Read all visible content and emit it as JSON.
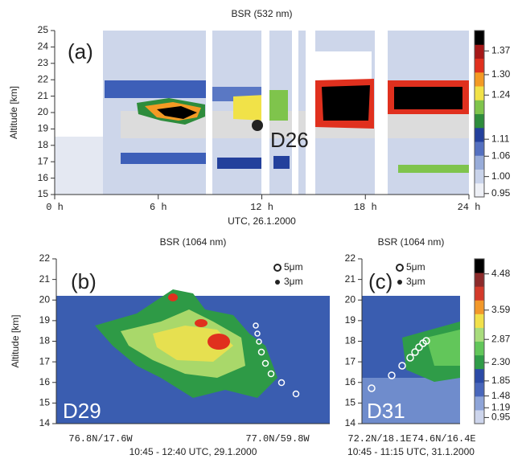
{
  "chart_data": [
    {
      "type": "heatmap",
      "title": "BSR (532 nm)",
      "panel_label": "(a)",
      "annotation": "D26",
      "ylabel": "Altitude [km]",
      "xlabel": "UTC, 26.1.2000",
      "xlim": [
        0,
        24
      ],
      "xticks": [
        {
          "value": 0,
          "label": "0 h"
        },
        {
          "value": 6,
          "label": "6 h"
        },
        {
          "value": 12,
          "label": "12 h"
        },
        {
          "value": 18,
          "label": "18 h"
        },
        {
          "value": 24,
          "label": "24 h"
        }
      ],
      "ylim": [
        15,
        25
      ],
      "yticks": [
        15,
        16,
        17,
        18,
        19,
        20,
        21,
        22,
        23,
        24,
        25
      ],
      "colorbar": {
        "lim": [
          0.94,
          1.43
        ],
        "ticks": [
          0.95,
          {
            "value": 1,
            "label": "1.00"
          },
          1.06,
          1.11,
          1.24,
          {
            "value": 1.3,
            "label": "1.30"
          },
          1.37
        ],
        "colors": [
          "#eef0f6",
          "#c9d3ea",
          "#98acd9",
          "#5470c0",
          "#23409c",
          "#2e8c3c",
          "#7fc44c",
          "#f1e248",
          "#f39a24",
          "#e0301e",
          "#a61818",
          "#000000"
        ]
      }
    },
    {
      "type": "heatmap",
      "title": "BSR (1064 nm)",
      "panel_label": "(b)",
      "annotation": "D29",
      "ylabel": "Altitude [km]",
      "xlabel": "10:45 - 12:40 UTC, 29.1.2000",
      "xticklabels": [
        "76.8N/17.6W",
        "77.0N/59.8W"
      ],
      "ylim": [
        14,
        22
      ],
      "yticks": [
        14,
        15,
        16,
        17,
        18,
        19,
        20,
        21,
        22
      ],
      "legend": [
        "5μm",
        "3μm"
      ]
    },
    {
      "type": "heatmap",
      "title": "BSR (1064 nm)",
      "panel_label": "(c)",
      "annotation": "D31",
      "xlabel": "10:45 - 11:15 UTC, 31.1.2000",
      "xticklabels": [
        "72.2N/18.1E",
        "74.6N/16.4E"
      ],
      "ylim": [
        14,
        22
      ],
      "yticks": [
        14,
        15,
        16,
        17,
        18,
        19,
        20,
        21,
        22
      ],
      "legend": [
        "5μm",
        "3μm"
      ],
      "colorbar": {
        "lim": [
          0.8,
          4.85
        ],
        "ticks": [
          0.95,
          1.19,
          1.48,
          1.85,
          {
            "value": 2.3,
            "label": "2.30"
          },
          2.87,
          3.59,
          4.48
        ],
        "colors": [
          "#cdd5ec",
          "#8ea4d8",
          "#4866bb",
          "#2b4aa6",
          "#2f9c48",
          "#62c65a",
          "#a8dc7c",
          "#f1e04a",
          "#f2982a",
          "#d33a2a",
          "#8c2a2a",
          "#000000"
        ]
      }
    }
  ]
}
